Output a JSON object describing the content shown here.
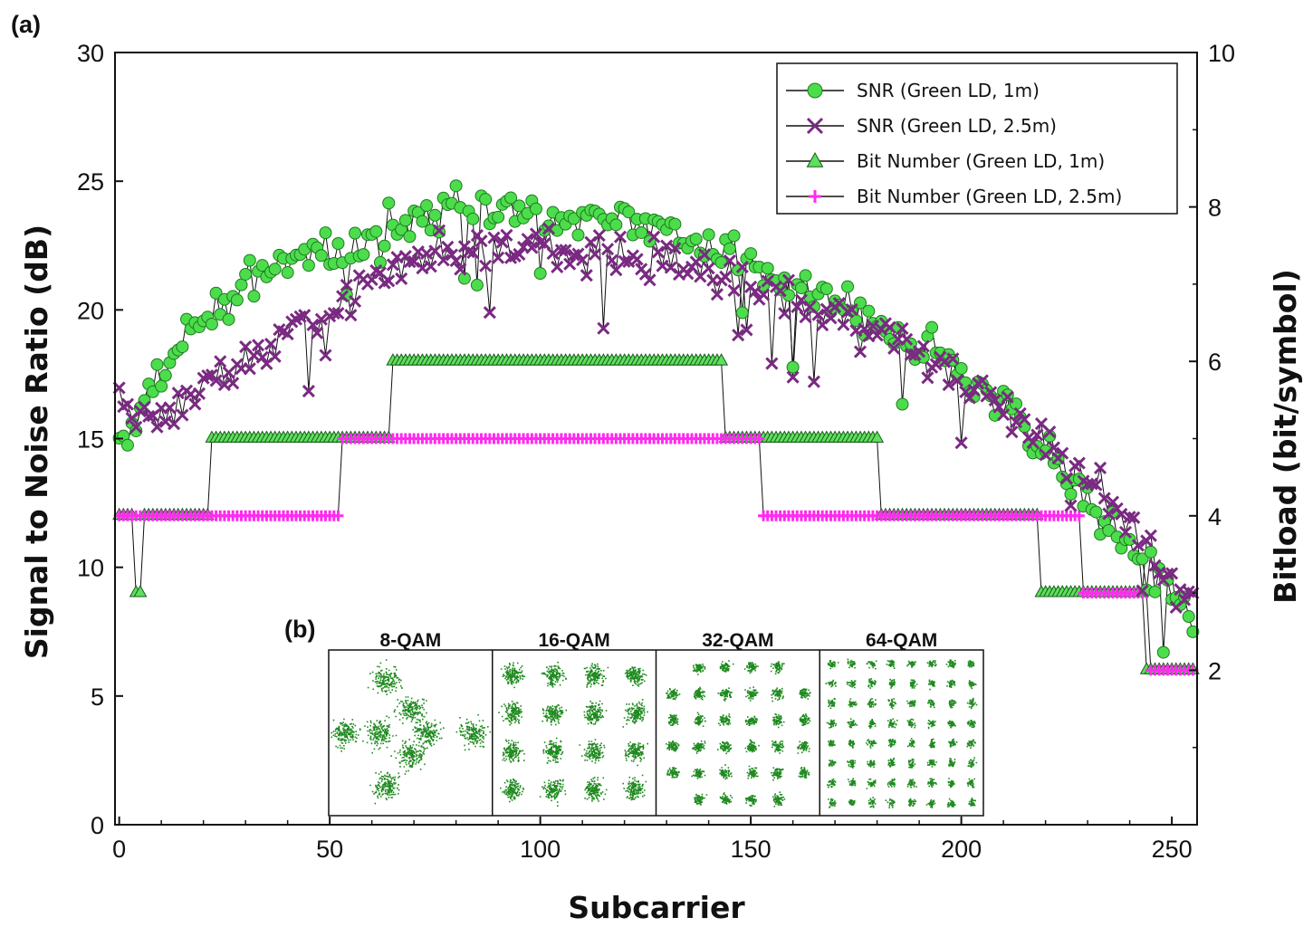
{
  "panel_labels": {
    "a": "(a)",
    "b": "(b)"
  },
  "colors": {
    "snr1_fill": "#4cdd4c",
    "snr1_edge": "#1f7a1f",
    "snr25": "#7a2a82",
    "bit1_fill": "#5ee05e",
    "bit25": "#ff2bf0",
    "constellation": "#1f8a1f",
    "axis": "#111111"
  },
  "chart_data": {
    "type": "line",
    "xlabel": "Subcarrier",
    "ylabel_left": "Signal to Noise Ratio (dB)",
    "ylabel_right": "Bitload (bit/symbol)",
    "xlim": [
      -1,
      256
    ],
    "xticks": [
      0,
      50,
      100,
      150,
      200,
      250
    ],
    "ylim_left": [
      0,
      30
    ],
    "yticks_left": [
      0,
      5,
      10,
      15,
      20,
      25,
      30
    ],
    "ylim_right": [
      0,
      10
    ],
    "yticks_right": [
      2,
      4,
      6,
      8,
      10
    ],
    "legend_position": "top-right",
    "series": [
      {
        "name": "SNR (Green LD, 1m)",
        "axis": "left",
        "marker": "circle",
        "x": [
          0,
          10,
          20,
          30,
          40,
          50,
          60,
          70,
          80,
          90,
          100,
          110,
          120,
          130,
          140,
          150,
          160,
          170,
          180,
          190,
          200,
          210,
          220,
          230,
          240,
          250,
          255
        ],
        "values": [
          14.5,
          17.6,
          19.6,
          21.3,
          21.6,
          22.2,
          22.8,
          23.5,
          24.0,
          24.1,
          23.5,
          23.8,
          23.6,
          23.2,
          22.6,
          21.7,
          20.8,
          20.1,
          19.4,
          18.5,
          17.5,
          16.3,
          14.6,
          12.6,
          10.6,
          8.8,
          8.0
        ]
      },
      {
        "name": "SNR (Green LD, 2.5m)",
        "axis": "left",
        "marker": "x",
        "x": [
          0,
          10,
          20,
          30,
          40,
          50,
          60,
          70,
          80,
          90,
          100,
          110,
          120,
          130,
          140,
          150,
          160,
          170,
          180,
          190,
          200,
          210,
          220,
          230,
          240,
          250,
          255
        ],
        "values": [
          16.2,
          15.8,
          17.0,
          18.0,
          19.2,
          20.1,
          21.3,
          21.9,
          22.4,
          22.7,
          22.4,
          22.2,
          22.0,
          21.8,
          21.4,
          21.0,
          20.4,
          19.6,
          19.0,
          18.3,
          17.3,
          16.3,
          15.0,
          13.5,
          11.7,
          9.6,
          8.5
        ]
      },
      {
        "name": "Bit Number (Green LD, 1m)",
        "axis": "right",
        "marker": "triangle",
        "segments": [
          [
            0,
            3,
            4
          ],
          [
            4,
            5,
            3
          ],
          [
            6,
            21,
            4
          ],
          [
            22,
            64,
            5
          ],
          [
            65,
            143,
            6
          ],
          [
            144,
            180,
            5
          ],
          [
            181,
            218,
            4
          ],
          [
            219,
            243,
            3
          ],
          [
            244,
            255,
            2
          ]
        ]
      },
      {
        "name": "Bit Number (Green LD, 2.5m)",
        "axis": "right",
        "marker": "plus",
        "segments": [
          [
            0,
            52,
            4
          ],
          [
            53,
            152,
            5
          ],
          [
            153,
            228,
            4
          ],
          [
            229,
            244,
            3
          ],
          [
            245,
            255,
            2
          ]
        ]
      }
    ]
  },
  "inset": {
    "constellations": [
      {
        "label": "8-QAM"
      },
      {
        "label": "16-QAM"
      },
      {
        "label": "32-QAM"
      },
      {
        "label": "64-QAM"
      }
    ]
  }
}
